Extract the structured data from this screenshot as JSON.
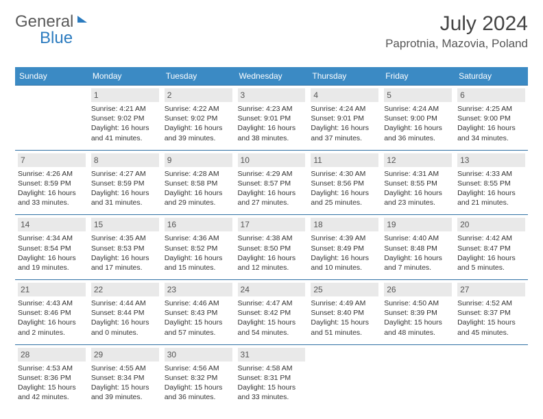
{
  "brand": {
    "part1": "General",
    "part2": "Blue"
  },
  "title": "July 2024",
  "location": "Paprotnia, Mazovia, Poland",
  "colors": {
    "header_bg": "#3b8ac4",
    "header_text": "#ffffff",
    "daynum_bg": "#e9e9e9",
    "rule": "#2d6fa3",
    "brand_gray": "#5a5a5a",
    "brand_blue": "#2b7bbf"
  },
  "day_headers": [
    "Sunday",
    "Monday",
    "Tuesday",
    "Wednesday",
    "Thursday",
    "Friday",
    "Saturday"
  ],
  "weeks": [
    [
      null,
      {
        "n": "1",
        "sr": "Sunrise: 4:21 AM",
        "ss": "Sunset: 9:02 PM",
        "d1": "Daylight: 16 hours",
        "d2": "and 41 minutes."
      },
      {
        "n": "2",
        "sr": "Sunrise: 4:22 AM",
        "ss": "Sunset: 9:02 PM",
        "d1": "Daylight: 16 hours",
        "d2": "and 39 minutes."
      },
      {
        "n": "3",
        "sr": "Sunrise: 4:23 AM",
        "ss": "Sunset: 9:01 PM",
        "d1": "Daylight: 16 hours",
        "d2": "and 38 minutes."
      },
      {
        "n": "4",
        "sr": "Sunrise: 4:24 AM",
        "ss": "Sunset: 9:01 PM",
        "d1": "Daylight: 16 hours",
        "d2": "and 37 minutes."
      },
      {
        "n": "5",
        "sr": "Sunrise: 4:24 AM",
        "ss": "Sunset: 9:00 PM",
        "d1": "Daylight: 16 hours",
        "d2": "and 36 minutes."
      },
      {
        "n": "6",
        "sr": "Sunrise: 4:25 AM",
        "ss": "Sunset: 9:00 PM",
        "d1": "Daylight: 16 hours",
        "d2": "and 34 minutes."
      }
    ],
    [
      {
        "n": "7",
        "sr": "Sunrise: 4:26 AM",
        "ss": "Sunset: 8:59 PM",
        "d1": "Daylight: 16 hours",
        "d2": "and 33 minutes."
      },
      {
        "n": "8",
        "sr": "Sunrise: 4:27 AM",
        "ss": "Sunset: 8:59 PM",
        "d1": "Daylight: 16 hours",
        "d2": "and 31 minutes."
      },
      {
        "n": "9",
        "sr": "Sunrise: 4:28 AM",
        "ss": "Sunset: 8:58 PM",
        "d1": "Daylight: 16 hours",
        "d2": "and 29 minutes."
      },
      {
        "n": "10",
        "sr": "Sunrise: 4:29 AM",
        "ss": "Sunset: 8:57 PM",
        "d1": "Daylight: 16 hours",
        "d2": "and 27 minutes."
      },
      {
        "n": "11",
        "sr": "Sunrise: 4:30 AM",
        "ss": "Sunset: 8:56 PM",
        "d1": "Daylight: 16 hours",
        "d2": "and 25 minutes."
      },
      {
        "n": "12",
        "sr": "Sunrise: 4:31 AM",
        "ss": "Sunset: 8:55 PM",
        "d1": "Daylight: 16 hours",
        "d2": "and 23 minutes."
      },
      {
        "n": "13",
        "sr": "Sunrise: 4:33 AM",
        "ss": "Sunset: 8:55 PM",
        "d1": "Daylight: 16 hours",
        "d2": "and 21 minutes."
      }
    ],
    [
      {
        "n": "14",
        "sr": "Sunrise: 4:34 AM",
        "ss": "Sunset: 8:54 PM",
        "d1": "Daylight: 16 hours",
        "d2": "and 19 minutes."
      },
      {
        "n": "15",
        "sr": "Sunrise: 4:35 AM",
        "ss": "Sunset: 8:53 PM",
        "d1": "Daylight: 16 hours",
        "d2": "and 17 minutes."
      },
      {
        "n": "16",
        "sr": "Sunrise: 4:36 AM",
        "ss": "Sunset: 8:52 PM",
        "d1": "Daylight: 16 hours",
        "d2": "and 15 minutes."
      },
      {
        "n": "17",
        "sr": "Sunrise: 4:38 AM",
        "ss": "Sunset: 8:50 PM",
        "d1": "Daylight: 16 hours",
        "d2": "and 12 minutes."
      },
      {
        "n": "18",
        "sr": "Sunrise: 4:39 AM",
        "ss": "Sunset: 8:49 PM",
        "d1": "Daylight: 16 hours",
        "d2": "and 10 minutes."
      },
      {
        "n": "19",
        "sr": "Sunrise: 4:40 AM",
        "ss": "Sunset: 8:48 PM",
        "d1": "Daylight: 16 hours",
        "d2": "and 7 minutes."
      },
      {
        "n": "20",
        "sr": "Sunrise: 4:42 AM",
        "ss": "Sunset: 8:47 PM",
        "d1": "Daylight: 16 hours",
        "d2": "and 5 minutes."
      }
    ],
    [
      {
        "n": "21",
        "sr": "Sunrise: 4:43 AM",
        "ss": "Sunset: 8:46 PM",
        "d1": "Daylight: 16 hours",
        "d2": "and 2 minutes."
      },
      {
        "n": "22",
        "sr": "Sunrise: 4:44 AM",
        "ss": "Sunset: 8:44 PM",
        "d1": "Daylight: 16 hours",
        "d2": "and 0 minutes."
      },
      {
        "n": "23",
        "sr": "Sunrise: 4:46 AM",
        "ss": "Sunset: 8:43 PM",
        "d1": "Daylight: 15 hours",
        "d2": "and 57 minutes."
      },
      {
        "n": "24",
        "sr": "Sunrise: 4:47 AM",
        "ss": "Sunset: 8:42 PM",
        "d1": "Daylight: 15 hours",
        "d2": "and 54 minutes."
      },
      {
        "n": "25",
        "sr": "Sunrise: 4:49 AM",
        "ss": "Sunset: 8:40 PM",
        "d1": "Daylight: 15 hours",
        "d2": "and 51 minutes."
      },
      {
        "n": "26",
        "sr": "Sunrise: 4:50 AM",
        "ss": "Sunset: 8:39 PM",
        "d1": "Daylight: 15 hours",
        "d2": "and 48 minutes."
      },
      {
        "n": "27",
        "sr": "Sunrise: 4:52 AM",
        "ss": "Sunset: 8:37 PM",
        "d1": "Daylight: 15 hours",
        "d2": "and 45 minutes."
      }
    ],
    [
      {
        "n": "28",
        "sr": "Sunrise: 4:53 AM",
        "ss": "Sunset: 8:36 PM",
        "d1": "Daylight: 15 hours",
        "d2": "and 42 minutes."
      },
      {
        "n": "29",
        "sr": "Sunrise: 4:55 AM",
        "ss": "Sunset: 8:34 PM",
        "d1": "Daylight: 15 hours",
        "d2": "and 39 minutes."
      },
      {
        "n": "30",
        "sr": "Sunrise: 4:56 AM",
        "ss": "Sunset: 8:32 PM",
        "d1": "Daylight: 15 hours",
        "d2": "and 36 minutes."
      },
      {
        "n": "31",
        "sr": "Sunrise: 4:58 AM",
        "ss": "Sunset: 8:31 PM",
        "d1": "Daylight: 15 hours",
        "d2": "and 33 minutes."
      },
      null,
      null,
      null
    ]
  ]
}
